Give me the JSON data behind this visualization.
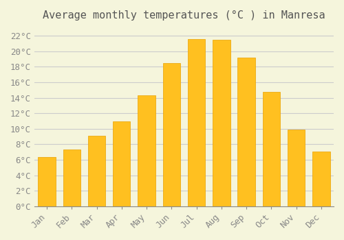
{
  "title": "Average monthly temperatures (°C ) in Manresa",
  "months": [
    "Jan",
    "Feb",
    "Mar",
    "Apr",
    "May",
    "Jun",
    "Jul",
    "Aug",
    "Sep",
    "Oct",
    "Nov",
    "Dec"
  ],
  "values": [
    6.4,
    7.3,
    9.1,
    11.0,
    14.3,
    18.5,
    21.6,
    21.5,
    19.2,
    14.8,
    9.9,
    7.1
  ],
  "bar_color": "#FFC020",
  "bar_edge_color": "#E8A000",
  "background_color": "#F5F5DC",
  "grid_color": "#CCCCCC",
  "ylim": [
    0,
    23
  ],
  "ytick_step": 2,
  "title_fontsize": 11,
  "tick_fontsize": 9,
  "tick_font_family": "monospace"
}
